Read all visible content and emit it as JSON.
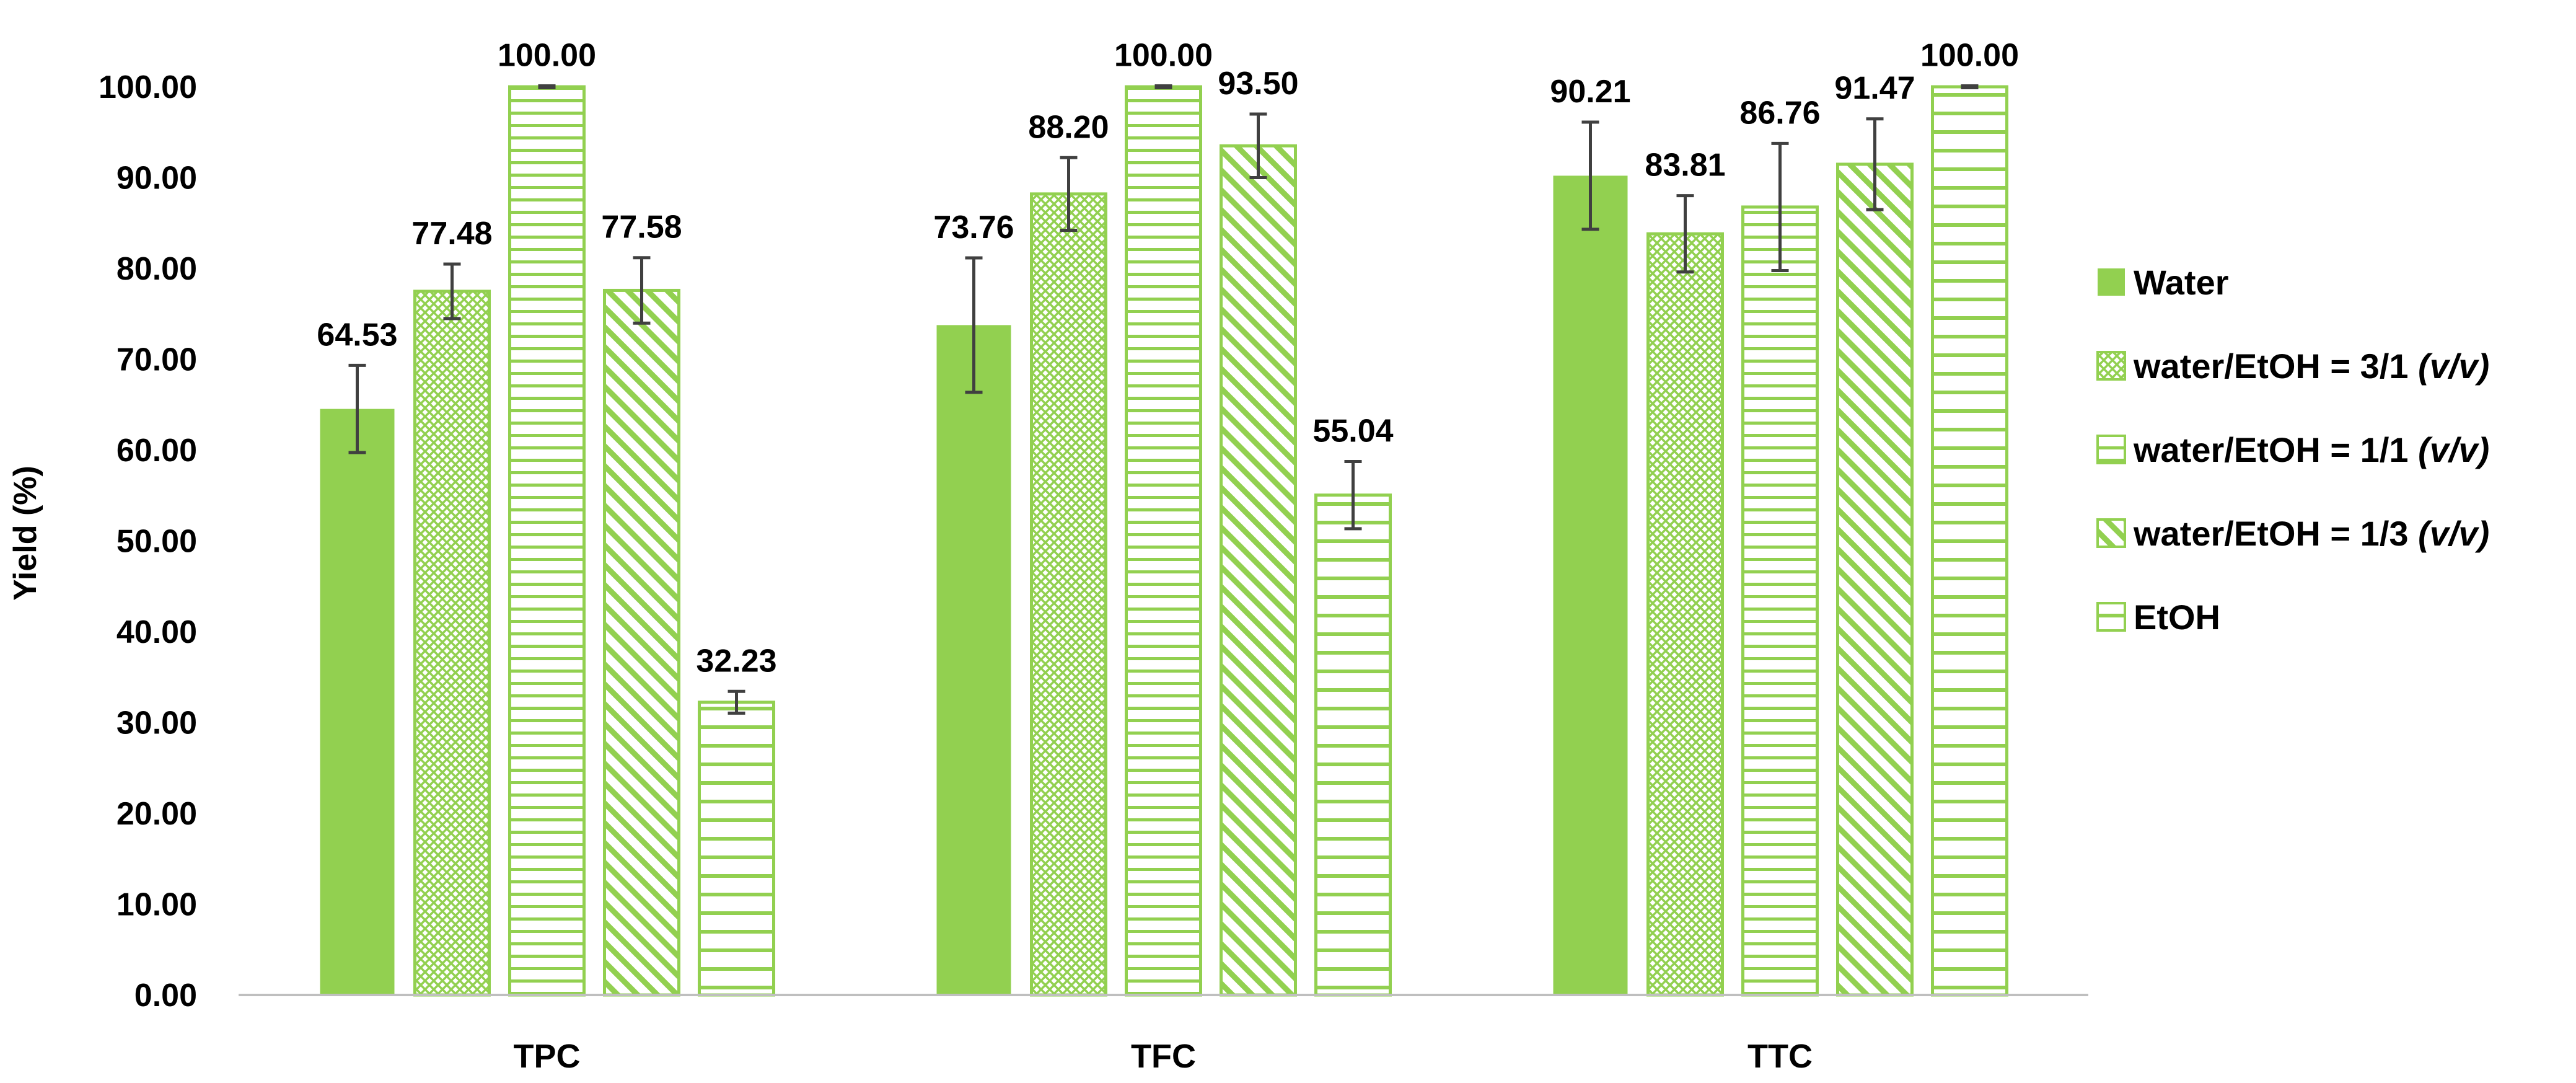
{
  "chart_data": {
    "type": "bar",
    "categories": [
      "TPC",
      "TFC",
      "TTC"
    ],
    "ylabel": "Yield (%)",
    "xlabel": "",
    "ylim": [
      0,
      100
    ],
    "y_ticks": [
      "0.00",
      "10.00",
      "20.00",
      "30.00",
      "40.00",
      "50.00",
      "60.00",
      "70.00",
      "80.00",
      "90.00",
      "100.00"
    ],
    "grid": false,
    "legend_position": "right",
    "series": [
      {
        "name": "Water",
        "legend_prefix": "Water",
        "legend_suffix": "",
        "pattern": "solid",
        "values": [
          64.53,
          73.76,
          90.21
        ],
        "labels": [
          "64.53",
          "73.76",
          "90.21"
        ],
        "errors": [
          4.8,
          7.4,
          5.9
        ]
      },
      {
        "name": "water/EtOH = 3/1 (v/v)",
        "legend_prefix": "water/EtOH = 3/1 ",
        "legend_suffix": "(v/v)",
        "pattern": "crosshatch",
        "values": [
          77.48,
          88.2,
          83.81
        ],
        "labels": [
          "77.48",
          "88.20",
          "83.81"
        ],
        "errors": [
          3.0,
          4.0,
          4.2
        ]
      },
      {
        "name": "water/EtOH = 1/1 (v/v)",
        "legend_prefix": "water/EtOH = 1/1 ",
        "legend_suffix": "(v/v)",
        "pattern": "horizontal-dense",
        "values": [
          100.0,
          100.0,
          86.76
        ],
        "labels": [
          "100.00",
          "100.00",
          "86.76"
        ],
        "errors": [
          0.1,
          0.1,
          7.0
        ]
      },
      {
        "name": "water/EtOH = 1/3 (v/v)",
        "legend_prefix": "water/EtOH = 1/3 ",
        "legend_suffix": "(v/v)",
        "pattern": "diagonal",
        "values": [
          77.58,
          93.5,
          91.47
        ],
        "labels": [
          "77.58",
          "93.50",
          "91.47"
        ],
        "errors": [
          3.6,
          3.5,
          5.0
        ]
      },
      {
        "name": "EtOH",
        "legend_prefix": "EtOH",
        "legend_suffix": "",
        "pattern": "horizontal-sparse",
        "values": [
          32.23,
          55.04,
          100.0
        ],
        "labels": [
          "32.23",
          "55.04",
          "100.00"
        ],
        "errors": [
          1.2,
          3.7,
          0.1
        ]
      }
    ],
    "colors": {
      "bar": "#92d050",
      "error_bar": "#404040",
      "axis": "#bfbfbf"
    }
  }
}
